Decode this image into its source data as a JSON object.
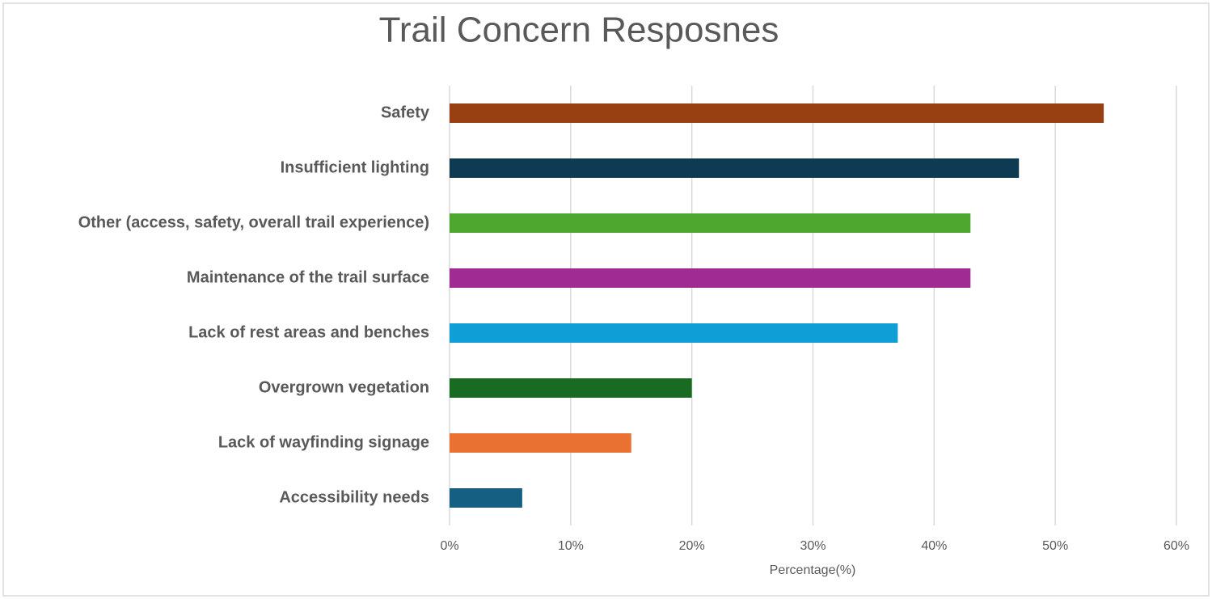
{
  "chart_data": {
    "type": "hbar",
    "title": "Trail Concern Resposnes",
    "categories": [
      "Safety",
      "Insufficient lighting",
      "Other (access, safety, overall trail experience)",
      "Maintenance of the trail surface",
      "Lack of rest areas and benches",
      "Overgrown vegetation",
      "Lack of wayfinding signage",
      "Accessibility needs"
    ],
    "values": [
      54,
      47,
      43,
      43,
      37,
      20,
      15,
      6
    ],
    "colors": [
      "#984011",
      "#0e3a52",
      "#4ea72e",
      "#a02b93",
      "#0f9ed5",
      "#196b24",
      "#e97132",
      "#156082"
    ],
    "xlabel": "Percentage(%)",
    "xlim": [
      0,
      60
    ],
    "xticks": [
      {
        "value": 0,
        "label": "0%"
      },
      {
        "value": 10,
        "label": "10%"
      },
      {
        "value": 20,
        "label": "20%"
      },
      {
        "value": 30,
        "label": "30%"
      },
      {
        "value": 40,
        "label": "40%"
      },
      {
        "value": 50,
        "label": "50%"
      },
      {
        "value": 60,
        "label": "60%"
      }
    ],
    "grid": true
  }
}
